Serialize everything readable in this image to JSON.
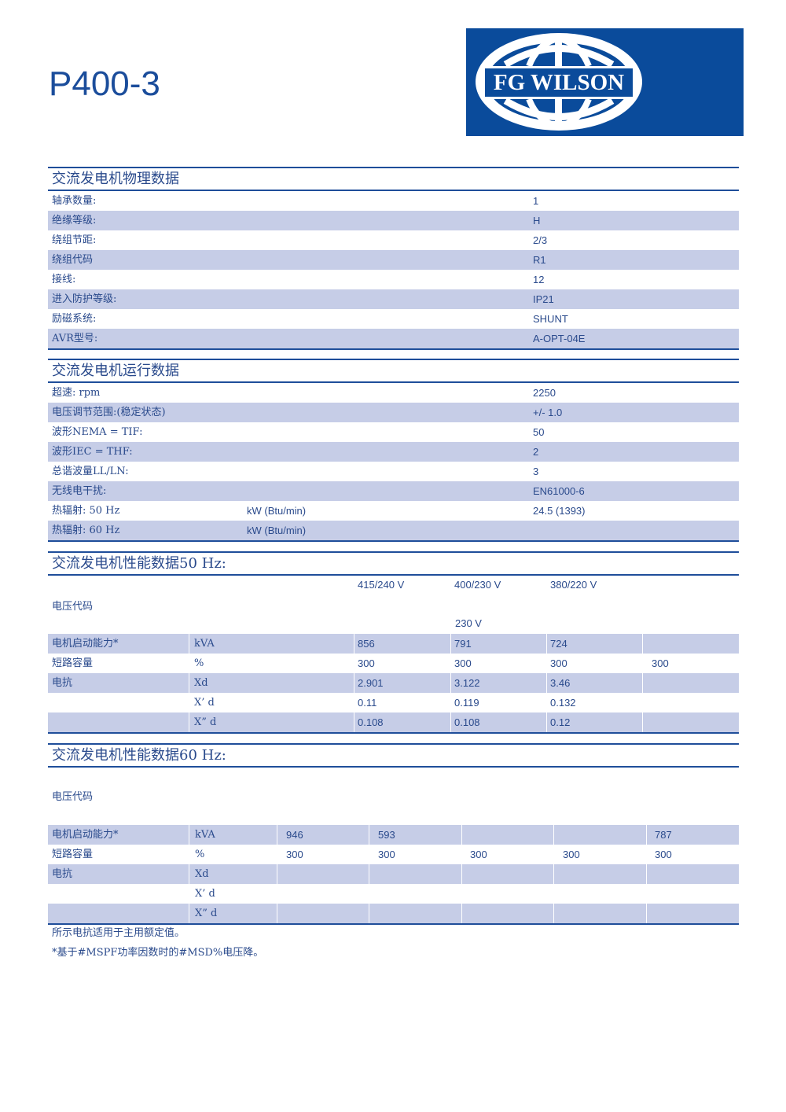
{
  "header": {
    "model": "P400-3",
    "logo_text": "FG WILSON",
    "brand_color": "#0a4b9b"
  },
  "physical": {
    "title": "交流发电机物理数据",
    "rows": [
      {
        "label": "轴承数量:",
        "value": "1"
      },
      {
        "label": "绝缘等级:",
        "value": "H"
      },
      {
        "label": "绕组节距:",
        "value": " 2/3"
      },
      {
        "label": "绕组代码",
        "value": "R1"
      },
      {
        "label": "接线:",
        "value": "12"
      },
      {
        "label": "进入防护等级:",
        "value": "IP21"
      },
      {
        "label": "励磁系统:",
        "value": "SHUNT"
      },
      {
        "label": "AVR型号:",
        "value": "A-OPT-04E"
      }
    ]
  },
  "operating": {
    "title": "交流发电机运行数据",
    "rows": [
      {
        "label": "超速: rpm",
        "unit": "",
        "value": "2250"
      },
      {
        "label": "电压调节范围:(稳定状态)",
        "unit": "",
        "value": "+/- 1.0"
      },
      {
        "label": "波形NEMA = TIF:",
        "unit": "",
        "value": "50"
      },
      {
        "label": "波形IEC = THF:",
        "unit": "",
        "value": "2"
      },
      {
        "label": "总谐波量LL/LN:",
        "unit": "",
        "value": "3"
      },
      {
        "label": "无线电干扰:",
        "unit": "",
        "value": "EN61000-6"
      },
      {
        "label": "热辐射: 50 Hz",
        "unit": "kW (Btu/min)",
        "value": "24.5 (1393)"
      },
      {
        "label": "热辐射: 60 Hz",
        "unit": "kW (Btu/min)",
        "value": ""
      }
    ]
  },
  "perf50": {
    "title": "交流发电机性能数据50 Hz:",
    "voltage_code_label": "电压代码",
    "voltages": [
      "415/240 V",
      "400/230 V",
      "380/220 V",
      ""
    ],
    "voltages_row2": [
      "",
      "230 V",
      "",
      ""
    ],
    "rows": [
      {
        "label": "电机启动能力*",
        "unit": "kVA",
        "values": [
          "856",
          " 791",
          " 724",
          ""
        ]
      },
      {
        "label": "短路容量",
        "unit": "%",
        "values": [
          "300",
          " 300",
          " 300",
          "300"
        ]
      },
      {
        "label": "电抗",
        "unit": "Xd",
        "values": [
          "2.901",
          "3.122",
          "3.46",
          ""
        ]
      },
      {
        "label": "",
        "unit": "X’ d",
        "values": [
          "0.11",
          "0.119",
          "0.132",
          ""
        ]
      },
      {
        "label": "",
        "unit": "X” d",
        "values": [
          "0.108",
          "0.108",
          "0.12",
          ""
        ]
      }
    ]
  },
  "perf60": {
    "title": "交流发电机性能数据60 Hz:",
    "voltage_code_label": "电压代码",
    "rows": [
      {
        "label": "电机启动能力*",
        "unit": "kVA",
        "values": [
          "946",
          "593",
          "",
          "",
          "787"
        ]
      },
      {
        "label": "短路容量",
        "unit": "%",
        "values": [
          "300",
          "300",
          "300",
          "300",
          "300"
        ]
      },
      {
        "label": "电抗",
        "unit": "Xd",
        "values": [
          "",
          "",
          "",
          "",
          ""
        ]
      },
      {
        "label": "",
        "unit": "X’ d",
        "values": [
          "",
          "",
          "",
          "",
          ""
        ]
      },
      {
        "label": "",
        "unit": "X” d",
        "values": [
          "",
          "",
          "",
          "",
          ""
        ]
      }
    ]
  },
  "notes": [
    "所示电抗适用于主用额定值。",
    "*基于#MSPF功率因数时的#MSD%电压降。"
  ]
}
